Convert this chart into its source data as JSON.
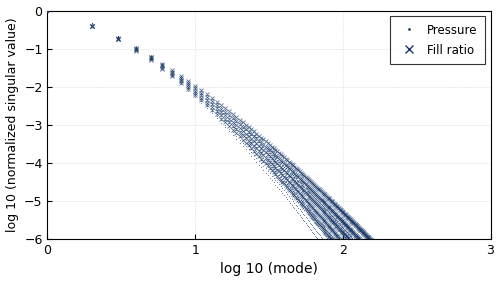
{
  "xlim": [
    0,
    3
  ],
  "ylim": [
    -6,
    0.05
  ],
  "xlabel": "log 10 (mode)",
  "ylabel": "log 10 (normalized singular value)",
  "dot_color": "#1a3a6b",
  "x_color": "#1a3a6b",
  "background_color": "#ffffff",
  "grid_color": "#999999",
  "legend_labels": [
    "Pressure",
    "Fill ratio"
  ],
  "n_pressure_curves": 8,
  "n_fill_curves": 5,
  "n_modes_pressure": 600,
  "n_modes_fill": 600,
  "pressure_alpha": 0.7,
  "fill_alpha": 0.7
}
